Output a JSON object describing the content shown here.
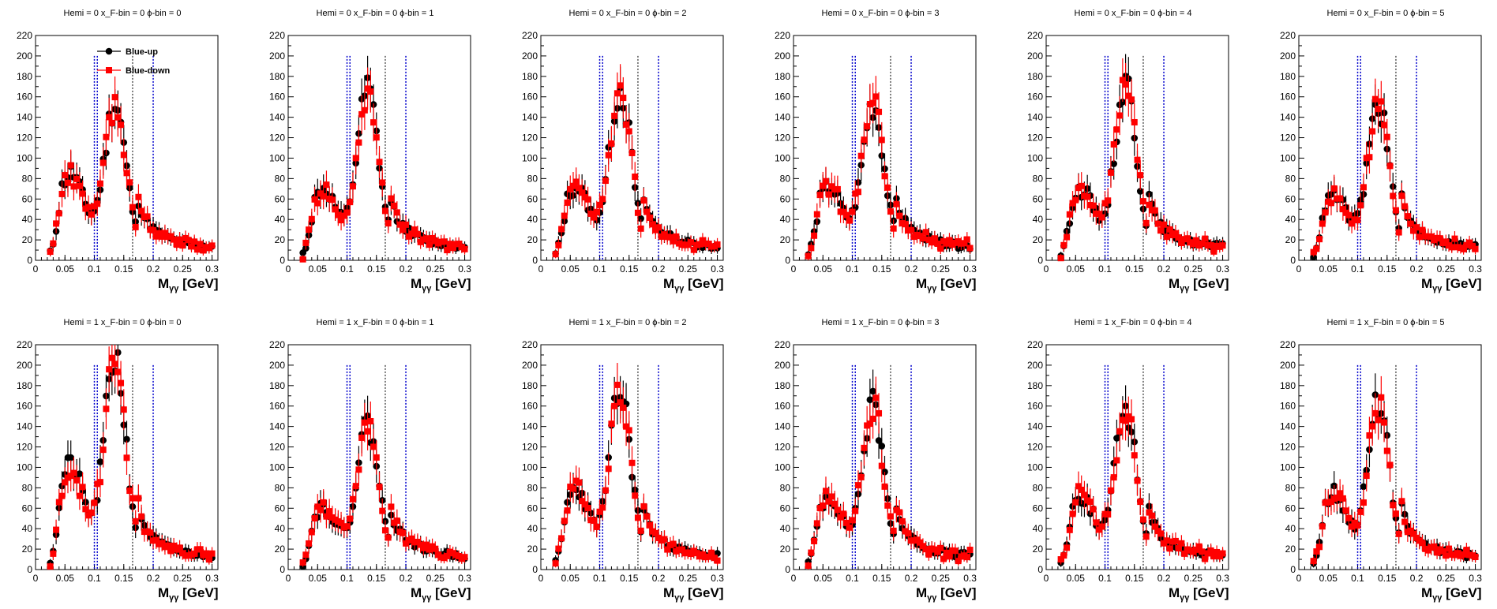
{
  "chart_data": {
    "type": "scatter",
    "layout": {
      "rows": 2,
      "cols": 6
    },
    "xlim": [
      0,
      0.31
    ],
    "ylim": [
      0,
      220
    ],
    "x_ticks": [
      0,
      0.05,
      0.1,
      0.15,
      0.2,
      0.25,
      0.3
    ],
    "x_tick_labels": [
      "0",
      "0.05",
      "0.1",
      "0.15",
      "0.2",
      "0.25",
      "0.3"
    ],
    "y_ticks": [
      0,
      20,
      40,
      60,
      80,
      100,
      120,
      140,
      160,
      180,
      200,
      220
    ],
    "y_tick_labels": [
      "0",
      "20",
      "40",
      "60",
      "80",
      "100",
      "120",
      "140",
      "160",
      "180",
      "200",
      "220"
    ],
    "xlabel_main": "M",
    "xlabel_sub": "γγ",
    "xlabel_unit": "[GeV]",
    "legend_placement": "top-left of first panel",
    "series_styles": [
      {
        "name": "Blue-up",
        "color": "#000000",
        "marker": "circle"
      },
      {
        "name": "Blue-down",
        "color": "#ff0000",
        "marker": "square"
      }
    ],
    "vertical_lines": [
      {
        "x": 0.1,
        "color": "#0000cc",
        "style": "dotted"
      },
      {
        "x": 0.105,
        "color": "#0000cc",
        "style": "dotted"
      },
      {
        "x": 0.165,
        "color": "#555555",
        "style": "dotted"
      },
      {
        "x": 0.2,
        "color": "#0000cc",
        "style": "dotted"
      }
    ],
    "panels": [
      {
        "title": "Hemi = 0 x_F-bin = 0 ϕ-bin = 0",
        "show_legend": true,
        "peak": 140,
        "low_peak": 72,
        "seed": 11
      },
      {
        "title": "Hemi = 0 x_F-bin = 0 ϕ-bin = 1",
        "show_legend": false,
        "peak": 150,
        "low_peak": 55,
        "seed": 12
      },
      {
        "title": "Hemi = 0 x_F-bin = 0 ϕ-bin = 2",
        "show_legend": false,
        "peak": 155,
        "low_peak": 58,
        "seed": 13
      },
      {
        "title": "Hemi = 0 x_F-bin = 0 ϕ-bin = 3",
        "show_legend": false,
        "peak": 140,
        "low_peak": 58,
        "seed": 14
      },
      {
        "title": "Hemi = 0 x_F-bin = 0 ϕ-bin = 4",
        "show_legend": false,
        "peak": 160,
        "low_peak": 55,
        "seed": 15
      },
      {
        "title": "Hemi = 0 x_F-bin = 0 ϕ-bin = 5",
        "show_legend": false,
        "peak": 138,
        "low_peak": 50,
        "seed": 16
      },
      {
        "title": "Hemi = 1 x_F-bin = 0 ϕ-bin = 0",
        "show_legend": false,
        "peak": 195,
        "low_peak": 88,
        "seed": 21
      },
      {
        "title": "Hemi = 1 x_F-bin = 0 ϕ-bin = 1",
        "show_legend": false,
        "peak": 128,
        "low_peak": 48,
        "seed": 22
      },
      {
        "title": "Hemi = 1 x_F-bin = 0 ϕ-bin = 2",
        "show_legend": false,
        "peak": 160,
        "low_peak": 65,
        "seed": 23
      },
      {
        "title": "Hemi = 1 x_F-bin = 0 ϕ-bin = 3",
        "show_legend": false,
        "peak": 145,
        "low_peak": 58,
        "seed": 24
      },
      {
        "title": "Hemi = 1 x_F-bin = 0 ϕ-bin = 4",
        "show_legend": false,
        "peak": 145,
        "low_peak": 58,
        "seed": 25
      },
      {
        "title": "Hemi = 1 x_F-bin = 0 ϕ-bin = 5",
        "show_legend": false,
        "peak": 148,
        "low_peak": 62,
        "seed": 26
      }
    ]
  }
}
